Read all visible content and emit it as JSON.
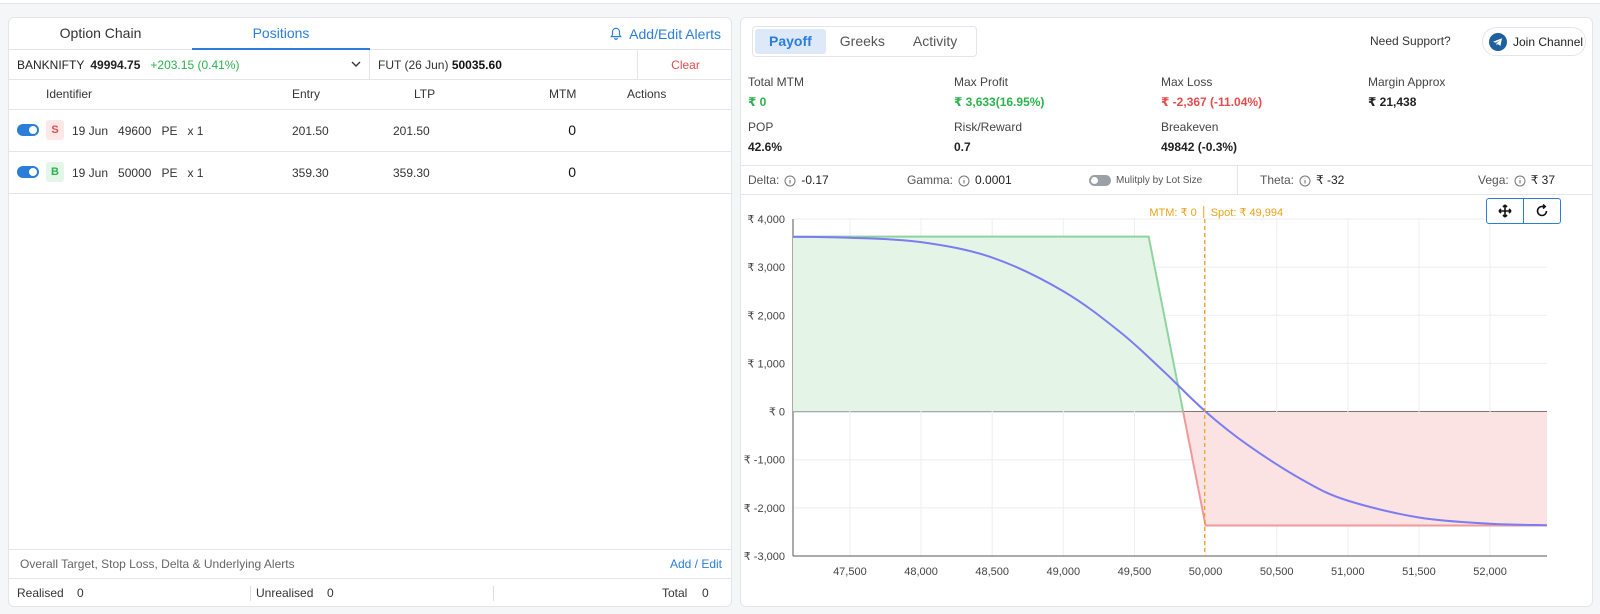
{
  "left_panel": {
    "tabs": [
      {
        "label": "Option Chain"
      },
      {
        "label": "Positions"
      }
    ],
    "alerts_link": "Add/Edit Alerts",
    "underlying": {
      "name": "BANKNIFTY",
      "price": "49994.75",
      "change": "+203.15 (0.41%)"
    },
    "future": {
      "label": "FUT (26 Jun)",
      "price": "50035.60"
    },
    "clear_label": "Clear",
    "columns": {
      "identifier": "Identifier",
      "entry": "Entry",
      "ltp": "LTP",
      "mtm": "MTM",
      "actions": "Actions"
    },
    "positions": [
      {
        "side": "S",
        "expiry": "19 Jun",
        "strike": "49600",
        "type": "PE",
        "qty": "x 1",
        "entry": "201.50",
        "ltp": "201.50",
        "mtm": "0"
      },
      {
        "side": "B",
        "expiry": "19 Jun",
        "strike": "50000",
        "type": "PE",
        "qty": "x 1",
        "entry": "359.30",
        "ltp": "359.30",
        "mtm": "0"
      }
    ],
    "targets": {
      "label": "Overall Target, Stop Loss, Delta & Underlying Alerts",
      "edit": "Add / Edit"
    },
    "totals": {
      "realised_label": "Realised",
      "realised": "0",
      "unrealised_label": "Unrealised",
      "unrealised": "0",
      "total_label": "Total",
      "total": "0"
    }
  },
  "right_panel": {
    "tabs": [
      {
        "label": "Payoff",
        "active": true
      },
      {
        "label": "Greeks"
      },
      {
        "label": "Activity"
      }
    ],
    "support_label": "Need Support?",
    "join_label": "Join Channel",
    "stats": {
      "total_mtm": {
        "label": "Total MTM",
        "value": "₹ 0"
      },
      "max_profit": {
        "label": "Max Profit",
        "value": "₹ 3,633(16.95%)"
      },
      "max_loss": {
        "label": "Max Loss",
        "value": "₹ -2,367 (-11.04%)"
      },
      "margin": {
        "label": "Margin Approx",
        "value": "₹ 21,438"
      },
      "pop": {
        "label": "POP",
        "value": "42.6%"
      },
      "risk_reward": {
        "label": "Risk/Reward",
        "value": "0.7"
      },
      "breakeven": {
        "label": "Breakeven",
        "value": "49842 (-0.3%)"
      }
    },
    "greeks": {
      "delta": {
        "label": "Delta:",
        "value": "-0.17"
      },
      "gamma": {
        "label": "Gamma:",
        "value": "0.0001"
      },
      "multiply_label": "Mulitply by Lot Size",
      "theta": {
        "label": "Theta:",
        "value": "₹ -32"
      },
      "vega": {
        "label": "Vega:",
        "value": "₹ 37"
      }
    },
    "colors": {
      "profit_fill": "#e4f5e8",
      "loss_fill": "#fbe3e3",
      "curve": "#7b7cf0",
      "spot_line": "#e8a317",
      "accent": "#2a7dd8"
    }
  },
  "chart_data": {
    "type": "area",
    "xlim": [
      47100,
      52400
    ],
    "ylim": [
      -3000,
      4000
    ],
    "x_ticks": [
      47500,
      48000,
      48500,
      49000,
      49500,
      50000,
      50500,
      51000,
      51500,
      52000
    ],
    "x_tick_labels": [
      "47,500",
      "48,000",
      "48,500",
      "49,000",
      "49,500",
      "50,000",
      "50,500",
      "51,000",
      "51,500",
      "52,000"
    ],
    "y_ticks": [
      4000,
      3000,
      2000,
      1000,
      0,
      -1000,
      -2000,
      -3000
    ],
    "y_tick_labels": [
      "₹ 4,000",
      "₹ 3,000",
      "₹ 2,000",
      "₹ 1,000",
      "₹ 0",
      "₹ -1,000",
      "₹ -2,000",
      "₹ -3,000"
    ],
    "expiry_payoff": {
      "x": [
        47100,
        49600,
        50000,
        52400
      ],
      "y": [
        3633,
        3633,
        -2367,
        -2367
      ]
    },
    "current_payoff": {
      "x": [
        47100,
        47500,
        48000,
        48500,
        49000,
        49400,
        49700,
        50000,
        50300,
        50700,
        51000,
        51500,
        52000,
        52400
      ],
      "y": [
        3630,
        3610,
        3520,
        3200,
        2500,
        1650,
        850,
        0,
        -700,
        -1450,
        -1850,
        -2200,
        -2330,
        -2360
      ]
    },
    "spot": 49994,
    "annotation": {
      "mtm": "MTM: ₹ 0",
      "spot": "Spot: ₹ 49,994"
    },
    "grid": true
  }
}
